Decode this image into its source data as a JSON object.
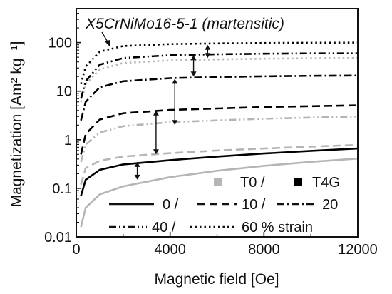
{
  "chart_data": {
    "type": "line",
    "title": "X5CrNiMo16-5-1 (martensitic)",
    "xlabel": "Magnetic field [Oe]",
    "ylabel": "Magnetization [Am² kg⁻¹]",
    "xlim": [
      0,
      12000
    ],
    "ylim": [
      0.01,
      500
    ],
    "yscale": "log",
    "grid": false,
    "x_ticks": [
      0,
      4000,
      8000,
      12000
    ],
    "x_tick_labels": [
      "0",
      "4000",
      "8000",
      "12000"
    ],
    "y_ticks": [
      0.01,
      0.1,
      1,
      10,
      100
    ],
    "y_tick_labels": [
      "0.01",
      "0.1",
      "1",
      "10",
      "100"
    ],
    "legend": {
      "placement": "bottom-right",
      "conditions": [
        {
          "label": "T0 /",
          "color": "#b5b5b5"
        },
        {
          "label": "T4G",
          "color": "#000000"
        }
      ],
      "strain_labels": [
        "0 /",
        "10 /",
        "20",
        "40 /",
        "60 % strain"
      ]
    },
    "series": [
      {
        "condition": "T0",
        "strain": 0,
        "style": "solid",
        "color": "#b5b5b5",
        "points": [
          [
            200,
            0.016
          ],
          [
            400,
            0.04
          ],
          [
            1000,
            0.075
          ],
          [
            2000,
            0.11
          ],
          [
            4000,
            0.17
          ],
          [
            6000,
            0.23
          ],
          [
            8000,
            0.29
          ],
          [
            10000,
            0.35
          ],
          [
            12000,
            0.41
          ]
        ]
      },
      {
        "condition": "T4G",
        "strain": 0,
        "style": "solid",
        "color": "#000000",
        "points": [
          [
            200,
            0.07
          ],
          [
            400,
            0.15
          ],
          [
            1000,
            0.24
          ],
          [
            2000,
            0.31
          ],
          [
            4000,
            0.38
          ],
          [
            6000,
            0.45
          ],
          [
            8000,
            0.52
          ],
          [
            10000,
            0.59
          ],
          [
            12000,
            0.66
          ]
        ]
      },
      {
        "condition": "T0",
        "strain": 10,
        "style": "dash",
        "color": "#b5b5b5",
        "points": [
          [
            200,
            0.12
          ],
          [
            400,
            0.26
          ],
          [
            1000,
            0.37
          ],
          [
            2000,
            0.45
          ],
          [
            4000,
            0.53
          ],
          [
            6000,
            0.6
          ],
          [
            8000,
            0.66
          ],
          [
            10000,
            0.72
          ],
          [
            12000,
            0.78
          ]
        ]
      },
      {
        "condition": "T4G",
        "strain": 10,
        "style": "dash",
        "color": "#000000",
        "points": [
          [
            200,
            0.5
          ],
          [
            400,
            1.3
          ],
          [
            1000,
            2.6
          ],
          [
            2000,
            3.5
          ],
          [
            4000,
            4.1
          ],
          [
            6000,
            4.4
          ],
          [
            8000,
            4.7
          ],
          [
            10000,
            4.9
          ],
          [
            12000,
            5.1
          ]
        ]
      },
      {
        "condition": "T0",
        "strain": 40,
        "style": "dashdotdot",
        "color": "#b5b5b5",
        "points": [
          [
            200,
            0.35
          ],
          [
            400,
            0.8
          ],
          [
            1000,
            1.4
          ],
          [
            2000,
            1.9
          ],
          [
            4000,
            2.3
          ],
          [
            6000,
            2.5
          ],
          [
            8000,
            2.7
          ],
          [
            10000,
            2.85
          ],
          [
            12000,
            3.0
          ]
        ]
      },
      {
        "condition": "T4G",
        "strain": 20,
        "style": "dashdot",
        "color": "#000000",
        "points": [
          [
            200,
            2.5
          ],
          [
            400,
            6
          ],
          [
            1000,
            12
          ],
          [
            2000,
            16
          ],
          [
            4000,
            18.5
          ],
          [
            6000,
            19.5
          ],
          [
            8000,
            20.2
          ],
          [
            10000,
            20.7
          ],
          [
            12000,
            21
          ]
        ]
      },
      {
        "condition": "T0",
        "strain": 60,
        "style": "dot",
        "color": "#b5b5b5",
        "points": [
          [
            200,
            6
          ],
          [
            400,
            14
          ],
          [
            1000,
            28
          ],
          [
            2000,
            38
          ],
          [
            4000,
            43
          ],
          [
            6000,
            45
          ],
          [
            8000,
            46.5
          ],
          [
            10000,
            47.5
          ],
          [
            12000,
            48
          ]
        ]
      },
      {
        "condition": "T4G",
        "strain": 40,
        "style": "dashdotdot",
        "color": "#000000",
        "points": [
          [
            200,
            7
          ],
          [
            400,
            16
          ],
          [
            1000,
            35
          ],
          [
            2000,
            48
          ],
          [
            4000,
            55
          ],
          [
            6000,
            57.5
          ],
          [
            8000,
            59
          ],
          [
            10000,
            60
          ],
          [
            12000,
            60
          ]
        ]
      },
      {
        "condition": "T4G",
        "strain": 60,
        "style": "dot",
        "color": "#000000",
        "points": [
          [
            200,
            14
          ],
          [
            400,
            32
          ],
          [
            1000,
            65
          ],
          [
            2000,
            85
          ],
          [
            4000,
            93
          ],
          [
            6000,
            96
          ],
          [
            8000,
            98
          ],
          [
            10000,
            99
          ],
          [
            12000,
            100
          ]
        ]
      }
    ],
    "arrows": [
      {
        "x": 2600,
        "y_from": 0.15,
        "y_to": 0.35
      },
      {
        "x": 3400,
        "y_from": 0.5,
        "y_to": 4.0
      },
      {
        "x": 4200,
        "y_from": 2.0,
        "y_to": 18.0
      },
      {
        "x": 5000,
        "y_from": 20.0,
        "y_to": 55.0
      },
      {
        "x": 5600,
        "y_from": 48.0,
        "y_to": 90.0
      }
    ]
  }
}
